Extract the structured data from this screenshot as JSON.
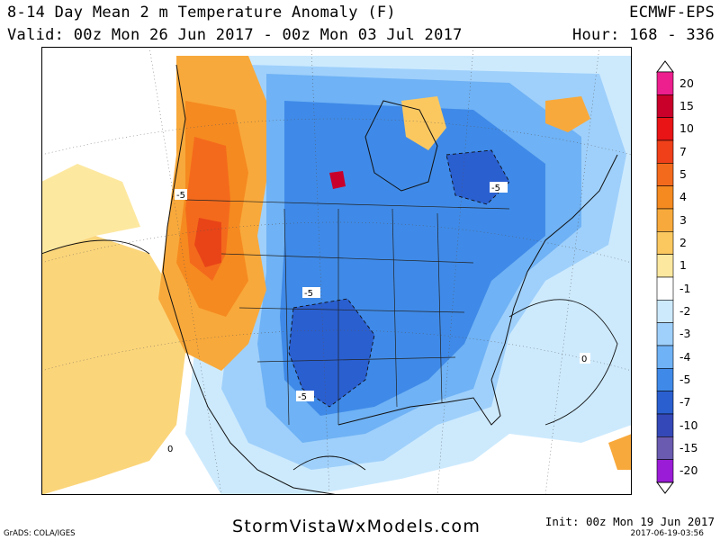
{
  "header": {
    "title": "8-14 Day Mean 2 m Temperature Anomaly (F)",
    "valid": "Valid: 00z Mon 26 Jun 2017 - 00z Mon 03 Jul 2017",
    "model": "ECMWF-EPS",
    "hour": "Hour: 168 - 336"
  },
  "map": {
    "contour_labels": [
      "-5",
      "-5",
      "-5",
      "-5",
      "0",
      "0"
    ]
  },
  "legend": {
    "labels": [
      "20",
      "15",
      "10",
      "7",
      "5",
      "4",
      "3",
      "2",
      "1",
      "-1",
      "-2",
      "-3",
      "-4",
      "-5",
      "-7",
      "-10",
      "-15",
      "-20"
    ],
    "colors": [
      "#ed1e8e",
      "#c8002a",
      "#e81416",
      "#f0401a",
      "#f46a1c",
      "#f58a20",
      "#f8a93b",
      "#fbc860",
      "#fde8a0",
      "#ffffff",
      "#cdeafd",
      "#9fd0fb",
      "#6fb2f5",
      "#3f8ae8",
      "#2a5fd0",
      "#3548b8",
      "#6a5ab0",
      "#9a1cd6"
    ]
  },
  "footer": {
    "grads": "GrADS: COLA/IGES",
    "site": "StormVistaWxModels.com",
    "init": "Init: 00z Mon 19 Jun 2017",
    "stamp": "2017-06-19-03:56"
  }
}
